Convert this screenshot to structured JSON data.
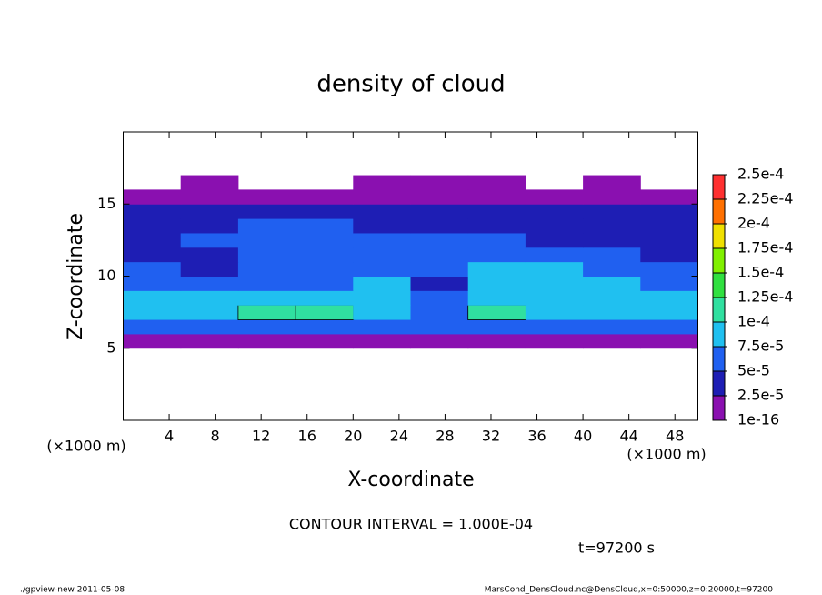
{
  "chart_data": {
    "type": "contour",
    "title": "density of cloud",
    "x_label": "X-coordinate",
    "y_label": "Z-coordinate",
    "x_unit_labels": [
      "(×1000 m)",
      "(×1000 m)"
    ],
    "annotations": [
      "CONTOUR INTERVAL = 1.000E-04",
      "t=97200 s"
    ],
    "footer": {
      "left": "./gpview-new  2011-05-08",
      "right": "MarsCond_DensCloud.nc@DensCloud,x=0:50000,z=0:20000,t=97200"
    },
    "xlim": [
      0,
      50
    ],
    "ylim": [
      0,
      20
    ],
    "xticks": [
      4,
      8,
      12,
      16,
      20,
      24,
      28,
      32,
      36,
      40,
      44,
      48
    ],
    "yticks": [
      5,
      10,
      15
    ],
    "x": [
      2.5,
      7.5,
      12.5,
      17.5,
      22.5,
      27.5,
      32.5,
      37.5,
      42.5,
      47.5
    ],
    "z": [
      5.5,
      6.5,
      7.5,
      8.5,
      9.5,
      10.5,
      11.5,
      12.5,
      13.5,
      14.5,
      15.5,
      16.5
    ],
    "values": [
      [
        2e-05,
        2e-05,
        1.5e-05,
        2e-05,
        2e-05,
        2e-05,
        2e-05,
        2e-05,
        2e-05,
        2e-05
      ],
      [
        6e-05,
        7e-05,
        7e-05,
        6e-05,
        6e-05,
        5e-05,
        7e-05,
        6e-05,
        6e-05,
        6e-05
      ],
      [
        8e-05,
        9e-05,
        0.00011,
        0.000105,
        8e-05,
        6e-05,
        0.000105,
        9e-05,
        9e-05,
        9e-05
      ],
      [
        8e-05,
        8e-05,
        9e-05,
        8e-05,
        8e-05,
        6e-05,
        8e-05,
        8e-05,
        8e-05,
        8e-05
      ],
      [
        7e-05,
        6e-05,
        6e-05,
        7e-05,
        8e-05,
        4e-05,
        8e-05,
        8e-05,
        8e-05,
        7e-05
      ],
      [
        6e-05,
        4e-05,
        5e-05,
        6e-05,
        7e-05,
        6e-05,
        8e-05,
        8e-05,
        7e-05,
        6e-05
      ],
      [
        4e-05,
        4e-05,
        6e-05,
        5e-05,
        6e-05,
        7e-05,
        7e-05,
        6e-05,
        5e-05,
        4e-05
      ],
      [
        3e-05,
        5e-05,
        7e-05,
        6e-05,
        6e-05,
        7e-05,
        6e-05,
        4e-05,
        4e-05,
        3e-05
      ],
      [
        3e-05,
        4e-05,
        5e-05,
        5e-05,
        4e-05,
        4e-05,
        4e-05,
        3e-05,
        3e-05,
        3e-05
      ],
      [
        3e-05,
        3e-05,
        3e-05,
        3e-05,
        3e-05,
        3e-05,
        3e-05,
        3e-05,
        3e-05,
        3e-05
      ],
      [
        1.5e-05,
        1.5e-05,
        1.5e-05,
        1.5e-05,
        1.5e-05,
        1.5e-05,
        1.5e-05,
        1.5e-05,
        1.5e-05,
        1.5e-05
      ],
      [
        null,
        1e-06,
        null,
        null,
        1e-06,
        1e-06,
        1e-06,
        null,
        1e-06,
        null
      ]
    ],
    "colorbar": {
      "levels": [
        {
          "value": 1e-16,
          "label": "1e-16"
        },
        {
          "value": 2.5e-05,
          "label": "2.5e-5"
        },
        {
          "value": 5e-05,
          "label": "5e-5"
        },
        {
          "value": 7.5e-05,
          "label": "7.5e-5"
        },
        {
          "value": 0.0001,
          "label": "1e-4"
        },
        {
          "value": 0.000125,
          "label": "1.25e-4"
        },
        {
          "value": 0.00015,
          "label": "1.5e-4"
        },
        {
          "value": 0.000175,
          "label": "1.75e-4"
        },
        {
          "value": 0.0002,
          "label": "2e-4"
        },
        {
          "value": 0.000225,
          "label": "2.25e-4"
        },
        {
          "value": 0.00025,
          "label": "2.5e-4"
        }
      ],
      "colors": [
        "#8a10b0",
        "#1e1eb4",
        "#2060f0",
        "#20c0f0",
        "#30e0a0",
        "#30e040",
        "#80f000",
        "#f0e000",
        "#ff7000",
        "#ff3030"
      ]
    },
    "contour_level": 0.0001
  }
}
